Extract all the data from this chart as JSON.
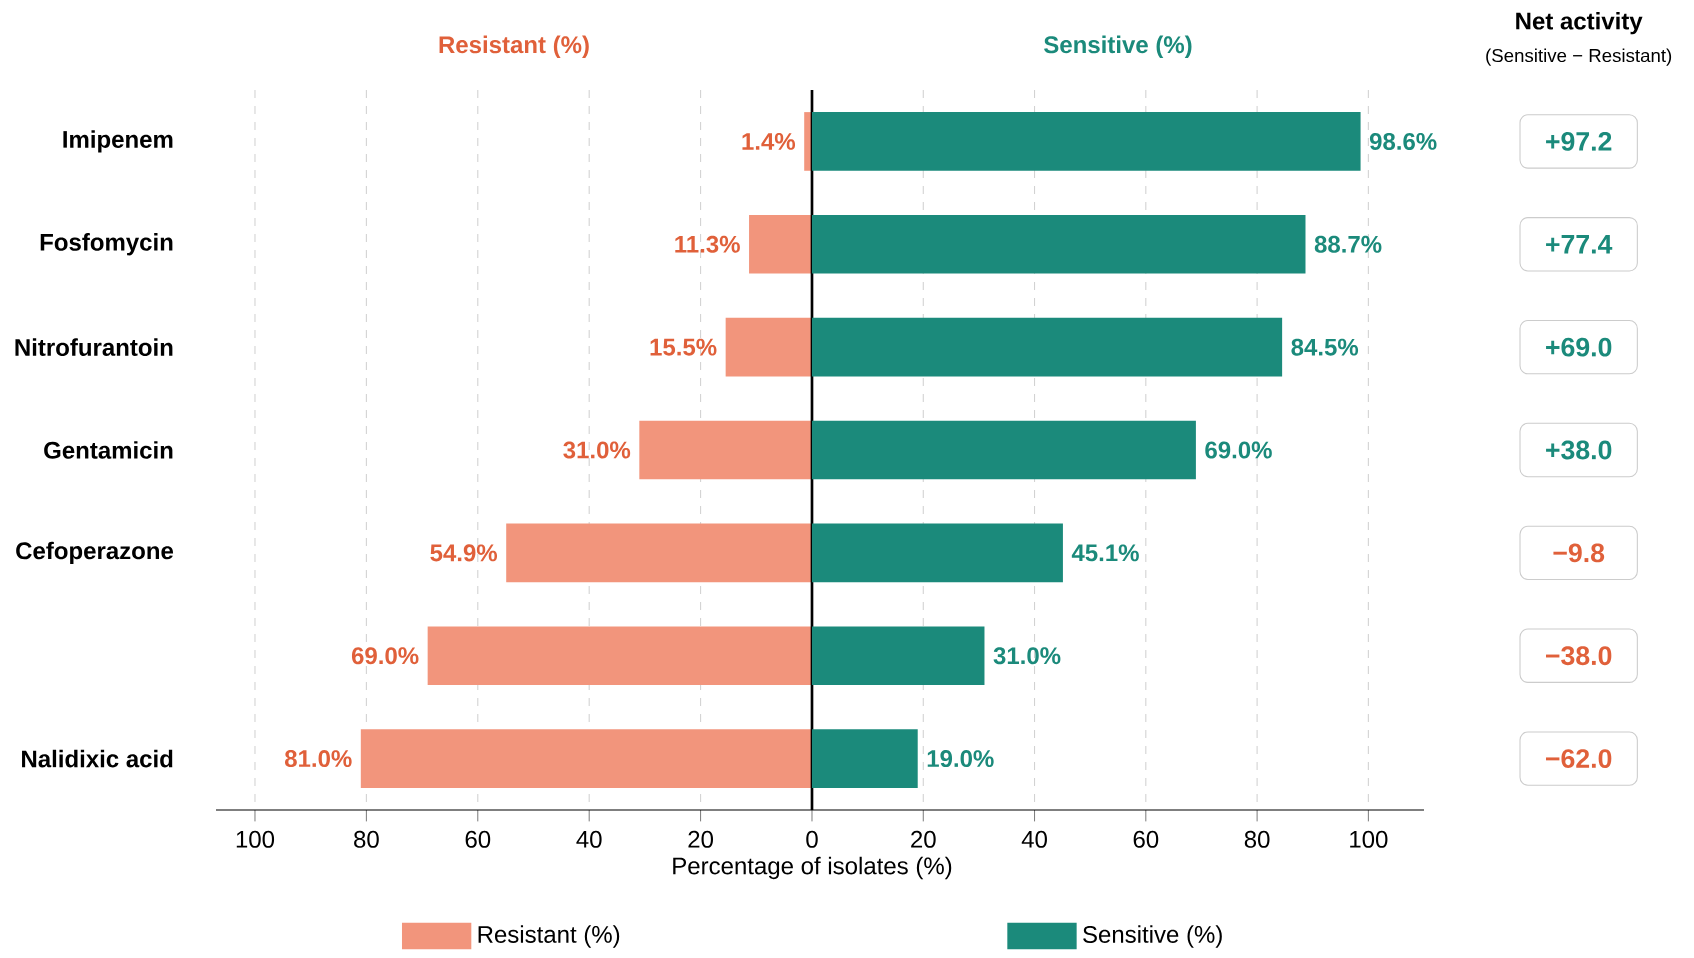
{
  "chart_data": [
    {
      "type": "bar",
      "orientation": "horizontal",
      "categories": [
        "Imipenem",
        "Fosfomycin",
        "Nitrofurantoin",
        "Gentamicin",
        "Cefoperazone",
        null,
        "Nalidixic acid"
      ],
      "series": [
        {
          "name": "Resistant (%)",
          "color": "#f2957c",
          "values": [
            1.4,
            11.3,
            15.5,
            31.0,
            54.9,
            69.0,
            81.0
          ],
          "value_labels": [
            "1.4%",
            "11.3%",
            "15.5%",
            "31.0%",
            "54.9%",
            "69.0%",
            "81.0%"
          ]
        }
      ],
      "xlim": [
        107,
        0
      ],
      "xticks": [
        100,
        80,
        60,
        40,
        20
      ],
      "grid": "x",
      "legend": "bottom"
    },
    {
      "type": "bar",
      "orientation": "horizontal",
      "categories": [
        null,
        null,
        null,
        null,
        null,
        null,
        null
      ],
      "series": [
        {
          "name": "Sensitive (%)",
          "color": "#1b8a7b",
          "values": [
            98.6,
            88.7,
            84.5,
            69.0,
            45.1,
            31.0,
            19.0
          ],
          "value_labels": [
            "98.6%",
            "88.7%",
            "84.5%",
            "69.0%",
            "45.1%",
            "31.0%",
            "19.0%"
          ]
        }
      ],
      "xlabel": "Percentage of isolates (%)",
      "xlim": [
        0,
        110
      ],
      "xticks": [
        0,
        20,
        40,
        60,
        80,
        100
      ],
      "tick_labels": "x",
      "grid": "x",
      "legend": "bottom",
      "annotations": [
        "Net activity",
        "(Sensitive − Resistant)",
        "+97.2",
        "+77.4",
        "+69.0",
        "+38.0",
        "−9.8",
        "−38.0",
        "−62.0"
      ]
    }
  ]
}
